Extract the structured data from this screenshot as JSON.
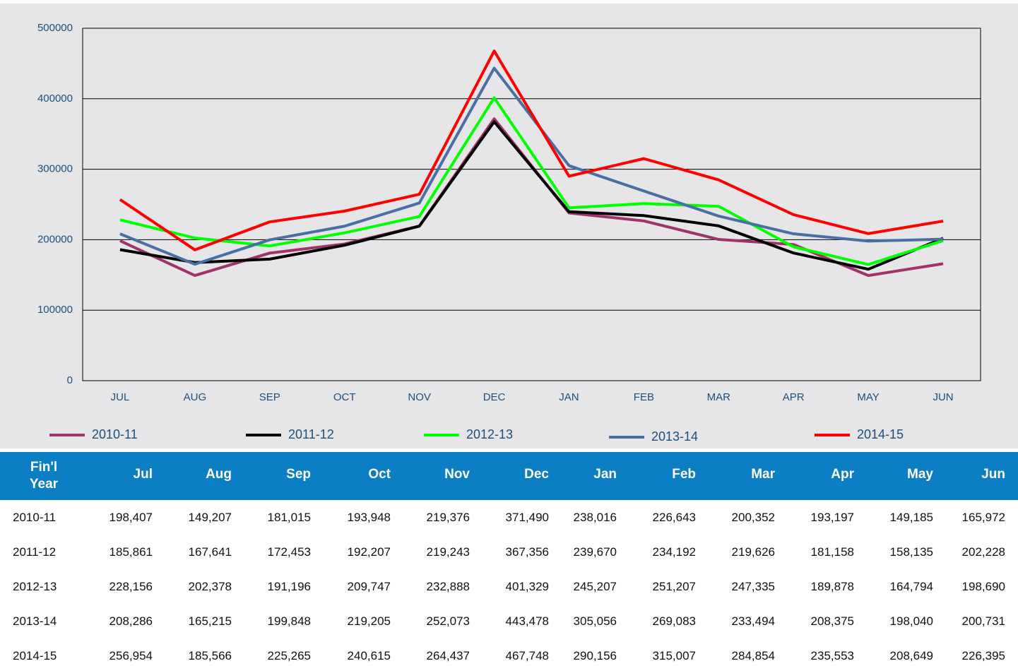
{
  "chart_data": {
    "type": "line",
    "categories": [
      "JUL",
      "AUG",
      "SEP",
      "OCT",
      "NOV",
      "DEC",
      "JAN",
      "FEB",
      "MAR",
      "APR",
      "MAY",
      "JUN"
    ],
    "series": [
      {
        "name": "2010-11",
        "color": "#a0336a",
        "values": [
          198407,
          149207,
          181015,
          193948,
          219376,
          371490,
          238016,
          226643,
          200352,
          193197,
          149185,
          165972
        ]
      },
      {
        "name": "2011-12",
        "color": "#000000",
        "values": [
          185861,
          167641,
          172453,
          192207,
          219243,
          367356,
          239670,
          234192,
          219626,
          181158,
          158135,
          202228
        ]
      },
      {
        "name": "2012-13",
        "color": "#00ff00",
        "values": [
          228156,
          202378,
          191196,
          209747,
          232888,
          401329,
          245207,
          251207,
          247335,
          189878,
          164794,
          198690
        ]
      },
      {
        "name": "2013-14",
        "color": "#4a6fa5",
        "values": [
          208286,
          165215,
          199848,
          219205,
          252073,
          443478,
          305056,
          269083,
          233494,
          208375,
          198040,
          200731
        ]
      },
      {
        "name": "2014-15",
        "color": "#ff0000",
        "values": [
          256954,
          185566,
          225265,
          240615,
          264437,
          467748,
          290156,
          315007,
          284854,
          235553,
          208649,
          226395
        ]
      }
    ],
    "ylim": [
      0,
      500000
    ],
    "yticks": [
      0,
      100000,
      200000,
      300000,
      400000,
      500000
    ],
    "grid": true
  },
  "table": {
    "header": [
      "Fin'l Year",
      "Jul",
      "Aug",
      "Sep",
      "Oct",
      "Nov",
      "Dec",
      "Jan",
      "Feb",
      "Mar",
      "Apr",
      "May",
      "Jun"
    ],
    "rows": [
      [
        "2010-11",
        "198,407",
        "149,207",
        "181,015",
        "193,948",
        "219,376",
        "371,490",
        "238,016",
        "226,643",
        "200,352",
        "193,197",
        "149,185",
        "165,972"
      ],
      [
        "2011-12",
        "185,861",
        "167,641",
        "172,453",
        "192,207",
        "219,243",
        "367,356",
        "239,670",
        "234,192",
        "219,626",
        "181,158",
        "158,135",
        "202,228"
      ],
      [
        "2012-13",
        "228,156",
        "202,378",
        "191,196",
        "209,747",
        "232,888",
        "401,329",
        "245,207",
        "251,207",
        "247,335",
        "189,878",
        "164,794",
        "198,690"
      ],
      [
        "2013-14",
        "208,286",
        "165,215",
        "199,848",
        "219,205",
        "252,073",
        "443,478",
        "305,056",
        "269,083",
        "233,494",
        "208,375",
        "198,040",
        "200,731"
      ],
      [
        "2014-15",
        "256,954",
        "185,566",
        "225,265",
        "240,615",
        "264,437",
        "467,748",
        "290,156",
        "315,007",
        "284,854",
        "235,553",
        "208,649",
        "226,395"
      ]
    ]
  }
}
